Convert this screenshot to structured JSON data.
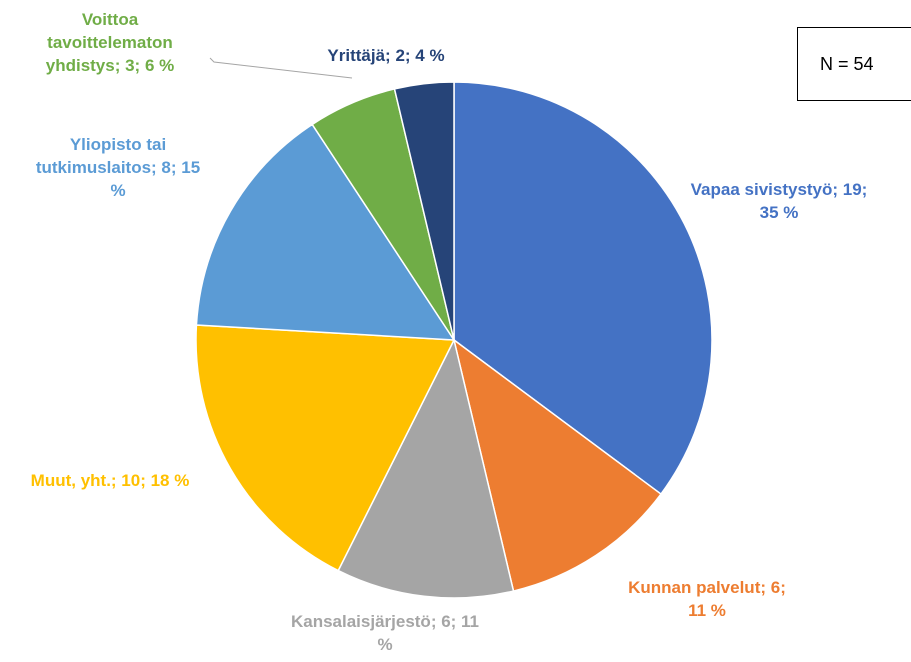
{
  "chart_data": {
    "type": "pie",
    "categories": [
      "Vapaa sivistystyö",
      "Kunnan palvelut",
      "Kansalaisjärjestö",
      "Muut, yht.",
      "Yliopisto tai tutkimuslaitos",
      "Voittoa tavoittelematon yhdistys",
      "Yrittäjä"
    ],
    "values": [
      19,
      6,
      6,
      10,
      8,
      3,
      2
    ],
    "value_labels": [
      "Vapaa sivistystyö; 19; 35 %",
      "Kunnan palvelut; 6; 11 %",
      "Kansalaisjärjestö; 6; 11 %",
      "Muut, yht.; 10; 18 %",
      "Yliopisto tai tutkimuslaitos; 8; 15 %",
      "Voittoa tavoittelematon yhdistys; 3; 6 %",
      "Yrittäjä; 2; 4 %"
    ],
    "colors": [
      "#4472c4",
      "#ed7d31",
      "#a5a5a5",
      "#ffc000",
      "#5b9bd5",
      "#70ad47",
      "#264478"
    ],
    "annotation": "N = 54"
  }
}
